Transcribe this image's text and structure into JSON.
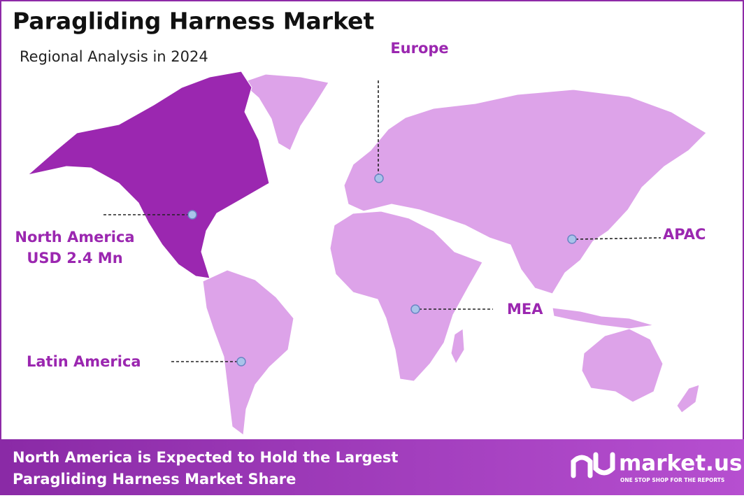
{
  "header": {
    "title": "Paragliding Harness Market",
    "subtitle": "Regional Analysis in 2024"
  },
  "regions": [
    {
      "name": "Europe"
    },
    {
      "name": "North America",
      "value": "USD 2.4 Mn"
    },
    {
      "name": "APAC"
    },
    {
      "name": "MEA"
    },
    {
      "name": "Latin America"
    }
  ],
  "footer": {
    "lines": [
      "North America is Expected to Hold the Largest",
      "Paragliding Harness Market Share"
    ]
  },
  "logo": {
    "name": "market.us",
    "tagline": "ONE STOP SHOP FOR THE REPORTS"
  }
}
